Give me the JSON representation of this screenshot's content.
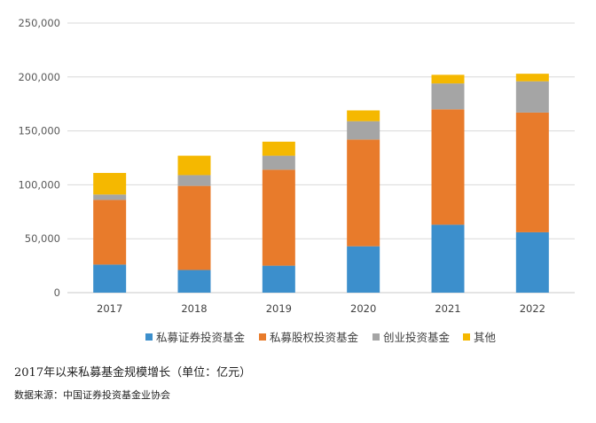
{
  "chart_data": {
    "type": "bar",
    "stacked": true,
    "categories": [
      "2017",
      "2018",
      "2019",
      "2020",
      "2021",
      "2022"
    ],
    "series": [
      {
        "name": "私募证券投资基金",
        "color": "#3C8FCC",
        "values": [
          26000,
          21000,
          25000,
          43000,
          63000,
          56000
        ]
      },
      {
        "name": "私募股权投资基金",
        "color": "#E87B2B",
        "values": [
          60000,
          78000,
          89000,
          99000,
          107000,
          111000
        ]
      },
      {
        "name": "创业投资基金",
        "color": "#A5A5A5",
        "values": [
          5000,
          10000,
          13000,
          17000,
          24000,
          29000
        ]
      },
      {
        "name": "其他",
        "color": "#F5B800",
        "values": [
          20000,
          18000,
          13000,
          10000,
          8000,
          7000
        ]
      }
    ],
    "ylim": [
      0,
      250000
    ],
    "yticks": [
      "0",
      "50,000",
      "100,000",
      "150,000",
      "200,000",
      "250,000"
    ],
    "grid": true,
    "legend": "bottom"
  },
  "caption": {
    "title": "2017年以来私募基金规模增长（单位：亿元）",
    "source": "数据来源：中国证券投资基金业协会"
  }
}
